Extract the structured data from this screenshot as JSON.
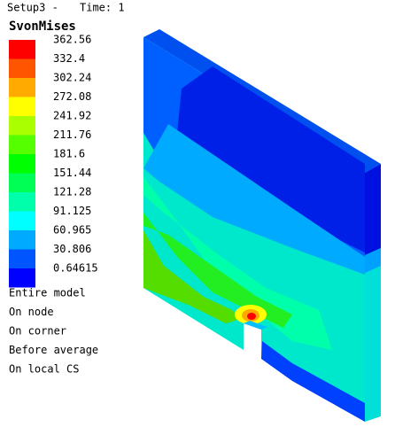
{
  "header": {
    "setup": "Setup3 -",
    "time": "Time: 1"
  },
  "legend": {
    "title": "SvonMises",
    "entries": [
      {
        "label": "362.56",
        "color": "#ff0000"
      },
      {
        "label": "332.4",
        "color": "#ff5500"
      },
      {
        "label": "302.24",
        "color": "#ffaa00"
      },
      {
        "label": "272.08",
        "color": "#ffff00"
      },
      {
        "label": "241.92",
        "color": "#aaff00"
      },
      {
        "label": "211.76",
        "color": "#55ff00"
      },
      {
        "label": "181.6",
        "color": "#00ff00"
      },
      {
        "label": "151.44",
        "color": "#00ff55"
      },
      {
        "label": "121.28",
        "color": "#00ffaa"
      },
      {
        "label": "91.125",
        "color": "#00ffff"
      },
      {
        "label": "60.965",
        "color": "#00aaff"
      },
      {
        "label": "30.806",
        "color": "#0055ff"
      },
      {
        "label": "0.64615",
        "color": "#0000ff"
      }
    ]
  },
  "info": [
    "Entire model",
    "On node",
    "On corner",
    "Before average",
    "On local CS"
  ]
}
